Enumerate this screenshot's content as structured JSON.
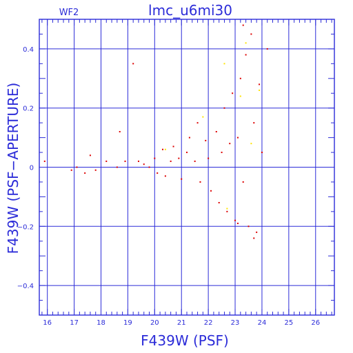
{
  "chart_data": {
    "type": "scatter",
    "title": "lmc_u6mi30",
    "panel_label": "WF2",
    "xlabel": "F439W (PSF)",
    "ylabel": "F439W (PSF−APERTURE)",
    "xlim": [
      15.7,
      26.7
    ],
    "ylim": [
      -0.5,
      0.5
    ],
    "x_ticks": [
      16,
      17,
      18,
      19,
      20,
      21,
      22,
      23,
      24,
      25,
      26
    ],
    "x_tick_labels": [
      "16",
      "17",
      "18",
      "19",
      "20",
      "21",
      "22",
      "23",
      "24",
      "25",
      "26"
    ],
    "y_ticks": [
      -0.4,
      -0.2,
      0,
      0.2,
      0.4
    ],
    "y_tick_labels": [
      "−0.4",
      "−0.2",
      "0",
      "0.2",
      "0.4"
    ],
    "grid": true,
    "colors": {
      "axes": "#2b2bd8",
      "points_main": "#dd0000",
      "points_flagged": "#ffe400"
    },
    "series": [
      {
        "color": "#dd0000",
        "points": [
          [
            15.9,
            0.02
          ],
          [
            16.9,
            -0.01
          ],
          [
            17.1,
            0.0
          ],
          [
            17.4,
            -0.02
          ],
          [
            17.6,
            0.04
          ],
          [
            17.8,
            -0.01
          ],
          [
            18.2,
            0.02
          ],
          [
            18.6,
            0.0
          ],
          [
            18.7,
            0.12
          ],
          [
            18.9,
            0.02
          ],
          [
            19.2,
            0.35
          ],
          [
            19.4,
            0.02
          ],
          [
            19.6,
            0.01
          ],
          [
            19.8,
            0.0
          ],
          [
            20.0,
            0.03
          ],
          [
            20.1,
            -0.02
          ],
          [
            20.3,
            0.06
          ],
          [
            20.4,
            -0.03
          ],
          [
            20.6,
            0.02
          ],
          [
            20.7,
            0.07
          ],
          [
            20.9,
            0.03
          ],
          [
            21.0,
            -0.04
          ],
          [
            21.2,
            0.05
          ],
          [
            21.3,
            0.1
          ],
          [
            21.5,
            0.02
          ],
          [
            21.6,
            0.15
          ],
          [
            21.7,
            -0.05
          ],
          [
            21.9,
            0.09
          ],
          [
            22.0,
            0.03
          ],
          [
            22.1,
            -0.08
          ],
          [
            22.3,
            0.12
          ],
          [
            22.4,
            -0.12
          ],
          [
            22.5,
            0.05
          ],
          [
            22.6,
            0.2
          ],
          [
            22.7,
            -0.15
          ],
          [
            22.8,
            0.08
          ],
          [
            22.9,
            0.25
          ],
          [
            23.0,
            -0.18
          ],
          [
            23.1,
            0.1
          ],
          [
            23.2,
            0.3
          ],
          [
            23.3,
            -0.05
          ],
          [
            23.4,
            0.38
          ],
          [
            23.5,
            -0.2
          ],
          [
            23.6,
            0.45
          ],
          [
            23.7,
            0.15
          ],
          [
            23.8,
            -0.22
          ],
          [
            23.9,
            0.28
          ],
          [
            24.0,
            0.05
          ],
          [
            24.2,
            0.4
          ],
          [
            23.7,
            -0.24
          ],
          [
            23.3,
            0.48
          ],
          [
            23.1,
            -0.19
          ]
        ]
      },
      {
        "color": "#ffe400",
        "points": [
          [
            21.8,
            0.17
          ],
          [
            22.6,
            0.35
          ],
          [
            22.7,
            -0.14
          ],
          [
            23.2,
            0.24
          ],
          [
            23.4,
            0.42
          ],
          [
            23.9,
            0.26
          ],
          [
            20.4,
            0.06
          ],
          [
            23.6,
            0.08
          ]
        ]
      }
    ]
  }
}
